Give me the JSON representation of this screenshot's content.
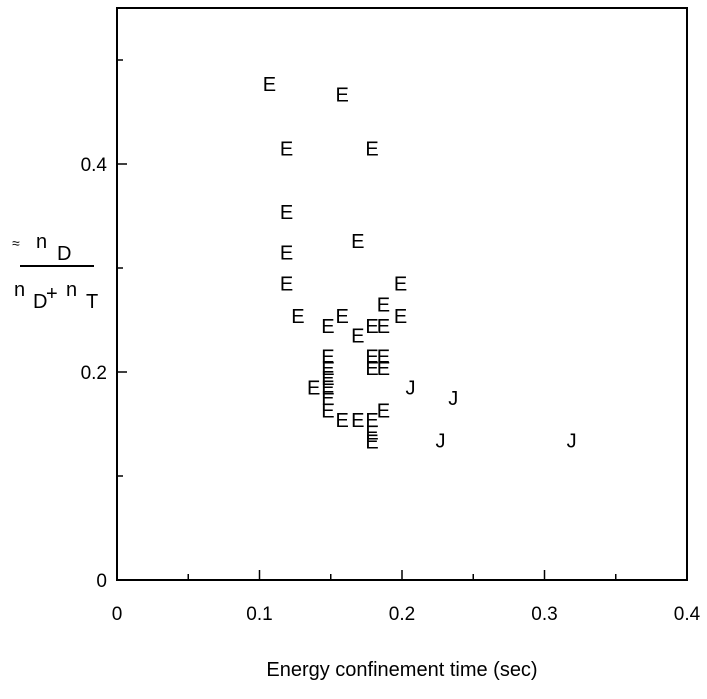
{
  "chart_data": {
    "type": "scatter",
    "xlabel": "Energy confinement time (sec)",
    "ylabel": {
      "prefix": "≈",
      "numerator": [
        "n",
        "D"
      ],
      "denominator": [
        "n",
        "D",
        "+",
        "n",
        "T"
      ]
    },
    "xlim": [
      0,
      0.4
    ],
    "ylim": [
      0,
      0.55
    ],
    "xticks": [
      0,
      0.1,
      0.2,
      0.3,
      0.4
    ],
    "yticks": [
      0,
      0.2,
      0.4
    ],
    "xminor": [
      0.05,
      0.15,
      0.25,
      0.35
    ],
    "yminor": [
      0.1,
      0.3,
      0.5
    ],
    "series": [
      {
        "marker": "E",
        "color": "#000000",
        "x": [
          0.107,
          0.158,
          0.119,
          0.179,
          0.119,
          0.119,
          0.169,
          0.119,
          0.199,
          0.187,
          0.127,
          0.199,
          0.158,
          0.148,
          0.179,
          0.187,
          0.169,
          0.148,
          0.179,
          0.187,
          0.179,
          0.187,
          0.148,
          0.148,
          0.138,
          0.148,
          0.148,
          0.148,
          0.187,
          0.158,
          0.169,
          0.179,
          0.179,
          0.179
        ],
        "values": [
          0.477,
          0.467,
          0.415,
          0.415,
          0.354,
          0.315,
          0.326,
          0.285,
          0.285,
          0.265,
          0.254,
          0.254,
          0.254,
          0.244,
          0.244,
          0.244,
          0.235,
          0.215,
          0.215,
          0.215,
          0.204,
          0.204,
          0.204,
          0.194,
          0.185,
          0.185,
          0.175,
          0.163,
          0.163,
          0.154,
          0.154,
          0.154,
          0.142,
          0.133
        ]
      },
      {
        "marker": "J",
        "color": "#000000",
        "x": [
          0.206,
          0.236,
          0.227,
          0.319
        ],
        "values": [
          0.185,
          0.175,
          0.134,
          0.134
        ]
      }
    ]
  }
}
